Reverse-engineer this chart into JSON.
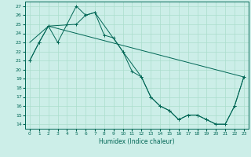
{
  "xlabel": "Humidex (Indice chaleur)",
  "bg_color": "#cceee8",
  "grid_color": "#aaddcc",
  "line_color": "#006655",
  "xlim": [
    -0.5,
    23.5
  ],
  "ylim": [
    13.5,
    27.5
  ],
  "xticks": [
    0,
    1,
    2,
    3,
    4,
    5,
    6,
    7,
    8,
    9,
    10,
    11,
    12,
    13,
    14,
    15,
    16,
    17,
    18,
    19,
    20,
    21,
    22,
    23
  ],
  "yticks": [
    14,
    15,
    16,
    17,
    18,
    19,
    20,
    21,
    22,
    23,
    24,
    25,
    26,
    27
  ],
  "line1_marked": {
    "x": [
      0,
      1,
      2,
      3,
      4,
      5,
      6,
      7,
      8,
      9,
      10,
      11,
      12,
      13,
      14,
      15,
      16,
      17,
      18,
      19,
      20,
      21,
      22,
      23
    ],
    "y": [
      21.0,
      23.0,
      24.8,
      23.0,
      25.0,
      27.0,
      26.0,
      26.3,
      23.8,
      23.5,
      22.0,
      19.8,
      19.2,
      17.0,
      16.0,
      15.5,
      14.5,
      15.0,
      15.0,
      14.5,
      14.0,
      14.0,
      16.0,
      19.2
    ]
  },
  "line2_straight": {
    "x": [
      0,
      2,
      23
    ],
    "y": [
      23.0,
      24.8,
      19.2
    ]
  },
  "line3_marked": {
    "x": [
      0,
      1,
      2,
      5,
      6,
      7,
      10,
      12,
      13,
      14,
      15,
      16,
      17,
      18,
      19,
      20,
      21,
      22,
      23
    ],
    "y": [
      21.0,
      23.0,
      24.8,
      25.0,
      26.0,
      26.3,
      22.0,
      19.2,
      17.0,
      16.0,
      15.5,
      14.5,
      15.0,
      15.0,
      14.5,
      14.0,
      14.0,
      16.0,
      19.2
    ]
  }
}
